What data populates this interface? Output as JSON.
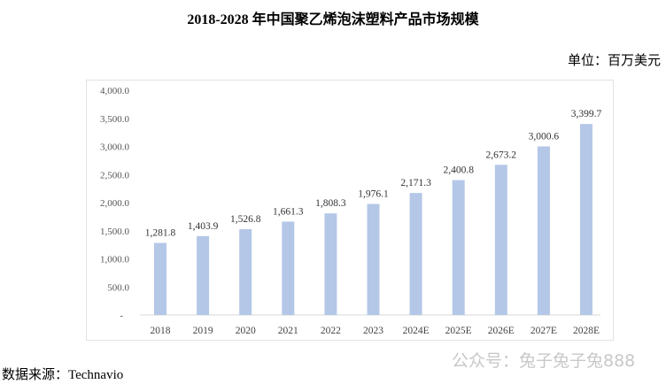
{
  "chart_data": {
    "type": "bar",
    "title": "2018-2028 年中国聚乙烯泡沫塑料产品市场规模",
    "unit_label": "单位：百万美元",
    "categories": [
      "2018",
      "2019",
      "2020",
      "2021",
      "2022",
      "2023",
      "2024E",
      "2025E",
      "2026E",
      "2027E",
      "2028E"
    ],
    "values": [
      1281.8,
      1403.9,
      1526.8,
      1661.3,
      1808.3,
      1976.1,
      2171.3,
      2400.8,
      2673.2,
      3000.6,
      3399.7
    ],
    "data_labels": [
      "1,281.8",
      "1,403.9",
      "1,526.8",
      "1,661.3",
      "1,808.3",
      "1,976.1",
      "2,171.3",
      "2,400.8",
      "2,673.2",
      "3,000.6",
      "3,399.7"
    ],
    "y_ticks": [
      "-",
      "500.0",
      "1,000.0",
      "1,500.0",
      "2,000.0",
      "2,500.0",
      "3,000.0",
      "3,500.0",
      "4,000.0"
    ],
    "ylim": [
      0,
      4000
    ],
    "xlabel": "",
    "ylabel": "",
    "grid": false,
    "legend": "none",
    "bar_color": "#b4c7e7"
  },
  "source": "数据来源：Technavio",
  "watermark": "公众号：兔子兔子兔888"
}
